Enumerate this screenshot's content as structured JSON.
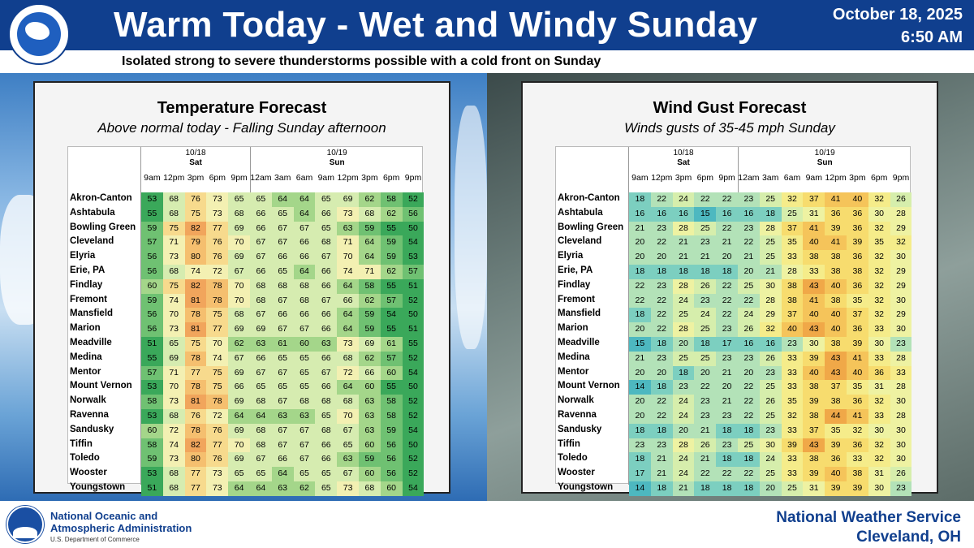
{
  "header": {
    "logo_text": "NATIONAL WEATHER SERVICE",
    "title": "Warm Today - Wet and Windy Sunday",
    "date": "October 18, 2025",
    "time": "6:50 AM",
    "subtitle": "Isolated strong to severe thunderstorms possible with a cold front on Sunday"
  },
  "temp": {
    "title": "Temperature Forecast",
    "subtitle": "Above normal today - Falling Sunday afternoon",
    "day1_date": "10/18",
    "day1_name": "Sat",
    "day2_date": "10/19",
    "day2_name": "Sun",
    "times": [
      "9am",
      "12pm",
      "3pm",
      "6pm",
      "9pm",
      "12am",
      "3am",
      "6am",
      "9am",
      "12pm",
      "3pm",
      "6pm",
      "9pm"
    ],
    "rows": [
      {
        "name": "Akron-Canton",
        "v": [
          53,
          68,
          76,
          73,
          65,
          65,
          64,
          64,
          65,
          69,
          62,
          58,
          52
        ]
      },
      {
        "name": "Ashtabula",
        "v": [
          55,
          68,
          75,
          73,
          68,
          66,
          65,
          64,
          66,
          73,
          68,
          62,
          56
        ]
      },
      {
        "name": "Bowling Green",
        "v": [
          59,
          75,
          82,
          77,
          69,
          66,
          67,
          67,
          65,
          63,
          59,
          55,
          50
        ]
      },
      {
        "name": "Cleveland",
        "v": [
          57,
          71,
          79,
          76,
          70,
          67,
          67,
          66,
          68,
          71,
          64,
          59,
          54
        ]
      },
      {
        "name": "Elyria",
        "v": [
          56,
          73,
          80,
          76,
          69,
          67,
          66,
          66,
          67,
          70,
          64,
          59,
          53
        ]
      },
      {
        "name": "Erie, PA",
        "v": [
          56,
          68,
          74,
          72,
          67,
          66,
          65,
          64,
          66,
          74,
          71,
          62,
          57
        ]
      },
      {
        "name": "Findlay",
        "v": [
          60,
          75,
          82,
          78,
          70,
          68,
          68,
          68,
          66,
          64,
          58,
          55,
          51
        ]
      },
      {
        "name": "Fremont",
        "v": [
          59,
          74,
          81,
          78,
          70,
          68,
          67,
          68,
          67,
          66,
          62,
          57,
          52
        ]
      },
      {
        "name": "Mansfield",
        "v": [
          56,
          70,
          78,
          75,
          68,
          67,
          66,
          66,
          66,
          64,
          59,
          54,
          50
        ]
      },
      {
        "name": "Marion",
        "v": [
          56,
          73,
          81,
          77,
          69,
          69,
          67,
          67,
          66,
          64,
          59,
          55,
          51
        ]
      },
      {
        "name": "Meadville",
        "v": [
          51,
          65,
          75,
          70,
          62,
          63,
          61,
          60,
          63,
          73,
          69,
          61,
          55
        ]
      },
      {
        "name": "Medina",
        "v": [
          55,
          69,
          78,
          74,
          67,
          66,
          65,
          65,
          66,
          68,
          62,
          57,
          52
        ]
      },
      {
        "name": "Mentor",
        "v": [
          57,
          71,
          77,
          75,
          69,
          67,
          67,
          65,
          67,
          72,
          66,
          60,
          54
        ]
      },
      {
        "name": "Mount Vernon",
        "v": [
          53,
          70,
          78,
          75,
          66,
          65,
          65,
          65,
          66,
          64,
          60,
          55,
          50
        ]
      },
      {
        "name": "Norwalk",
        "v": [
          58,
          73,
          81,
          78,
          69,
          68,
          67,
          68,
          68,
          68,
          63,
          58,
          52
        ]
      },
      {
        "name": "Ravenna",
        "v": [
          53,
          68,
          76,
          72,
          64,
          64,
          63,
          63,
          65,
          70,
          63,
          58,
          52
        ]
      },
      {
        "name": "Sandusky",
        "v": [
          60,
          72,
          78,
          76,
          69,
          68,
          67,
          67,
          68,
          67,
          63,
          59,
          54
        ]
      },
      {
        "name": "Tiffin",
        "v": [
          58,
          74,
          82,
          77,
          70,
          68,
          67,
          67,
          66,
          65,
          60,
          56,
          50
        ]
      },
      {
        "name": "Toledo",
        "v": [
          59,
          73,
          80,
          76,
          69,
          67,
          66,
          67,
          66,
          63,
          59,
          56,
          52
        ]
      },
      {
        "name": "Wooster",
        "v": [
          53,
          68,
          77,
          73,
          65,
          65,
          64,
          65,
          65,
          67,
          60,
          56,
          52
        ]
      },
      {
        "name": "Youngstown",
        "v": [
          51,
          68,
          77,
          73,
          64,
          64,
          63,
          62,
          65,
          73,
          68,
          60,
          54
        ]
      }
    ]
  },
  "wind": {
    "title": "Wind Gust Forecast",
    "subtitle": "Winds gusts of 35-45 mph Sunday",
    "day1_date": "10/18",
    "day1_name": "Sat",
    "day2_date": "10/19",
    "day2_name": "Sun",
    "times": [
      "9am",
      "12pm",
      "3pm",
      "6pm",
      "9pm",
      "12am",
      "3am",
      "6am",
      "9am",
      "12pm",
      "3pm",
      "6pm",
      "9pm"
    ],
    "rows": [
      {
        "name": "Akron-Canton",
        "v": [
          18,
          22,
          24,
          22,
          22,
          23,
          25,
          32,
          37,
          41,
          40,
          32,
          26
        ]
      },
      {
        "name": "Ashtabula",
        "v": [
          16,
          16,
          16,
          15,
          16,
          16,
          18,
          25,
          31,
          36,
          36,
          30,
          28
        ]
      },
      {
        "name": "Bowling Green",
        "v": [
          21,
          23,
          28,
          25,
          22,
          23,
          28,
          37,
          41,
          39,
          36,
          32,
          29
        ]
      },
      {
        "name": "Cleveland",
        "v": [
          20,
          22,
          21,
          23,
          21,
          22,
          25,
          35,
          40,
          41,
          39,
          35,
          32
        ]
      },
      {
        "name": "Elyria",
        "v": [
          20,
          20,
          21,
          21,
          20,
          21,
          25,
          33,
          38,
          38,
          36,
          32,
          30
        ]
      },
      {
        "name": "Erie, PA",
        "v": [
          18,
          18,
          18,
          18,
          18,
          20,
          21,
          28,
          33,
          38,
          38,
          32,
          29
        ]
      },
      {
        "name": "Findlay",
        "v": [
          22,
          23,
          28,
          26,
          22,
          25,
          30,
          38,
          43,
          40,
          36,
          32,
          29
        ]
      },
      {
        "name": "Fremont",
        "v": [
          22,
          22,
          24,
          23,
          22,
          22,
          28,
          38,
          41,
          38,
          35,
          32,
          30
        ]
      },
      {
        "name": "Mansfield",
        "v": [
          18,
          22,
          25,
          24,
          22,
          24,
          29,
          37,
          40,
          40,
          37,
          32,
          29
        ]
      },
      {
        "name": "Marion",
        "v": [
          20,
          22,
          28,
          25,
          23,
          26,
          32,
          40,
          43,
          40,
          36,
          33,
          30
        ]
      },
      {
        "name": "Meadville",
        "v": [
          15,
          18,
          20,
          18,
          17,
          16,
          16,
          23,
          30,
          38,
          39,
          30,
          23
        ]
      },
      {
        "name": "Medina",
        "v": [
          21,
          23,
          25,
          25,
          23,
          23,
          26,
          33,
          39,
          43,
          41,
          33,
          28
        ]
      },
      {
        "name": "Mentor",
        "v": [
          20,
          20,
          18,
          20,
          21,
          20,
          23,
          33,
          40,
          43,
          40,
          36,
          33
        ]
      },
      {
        "name": "Mount Vernon",
        "v": [
          14,
          18,
          23,
          22,
          20,
          22,
          25,
          33,
          38,
          37,
          35,
          31,
          28
        ]
      },
      {
        "name": "Norwalk",
        "v": [
          20,
          22,
          24,
          23,
          21,
          22,
          26,
          35,
          39,
          38,
          36,
          32,
          30
        ]
      },
      {
        "name": "Ravenna",
        "v": [
          20,
          22,
          24,
          23,
          23,
          22,
          25,
          32,
          38,
          44,
          41,
          33,
          28
        ]
      },
      {
        "name": "Sandusky",
        "v": [
          18,
          18,
          20,
          21,
          18,
          18,
          23,
          33,
          37,
          35,
          32,
          30,
          30
        ]
      },
      {
        "name": "Tiffin",
        "v": [
          23,
          23,
          28,
          26,
          23,
          25,
          30,
          39,
          43,
          39,
          36,
          32,
          30
        ]
      },
      {
        "name": "Toledo",
        "v": [
          18,
          21,
          24,
          21,
          18,
          18,
          24,
          33,
          38,
          36,
          33,
          32,
          30
        ]
      },
      {
        "name": "Wooster",
        "v": [
          17,
          21,
          24,
          22,
          22,
          22,
          25,
          33,
          39,
          40,
          38,
          31,
          26
        ]
      },
      {
        "name": "Youngstown",
        "v": [
          14,
          18,
          21,
          18,
          18,
          18,
          20,
          25,
          31,
          39,
          39,
          30,
          23
        ]
      }
    ]
  },
  "footer": {
    "noaa_line1": "National Oceanic and",
    "noaa_line2": "Atmospheric Administration",
    "doc": "U.S. Department of Commerce",
    "nws_line1": "National Weather Service",
    "nws_line2": "Cleveland, OH"
  }
}
